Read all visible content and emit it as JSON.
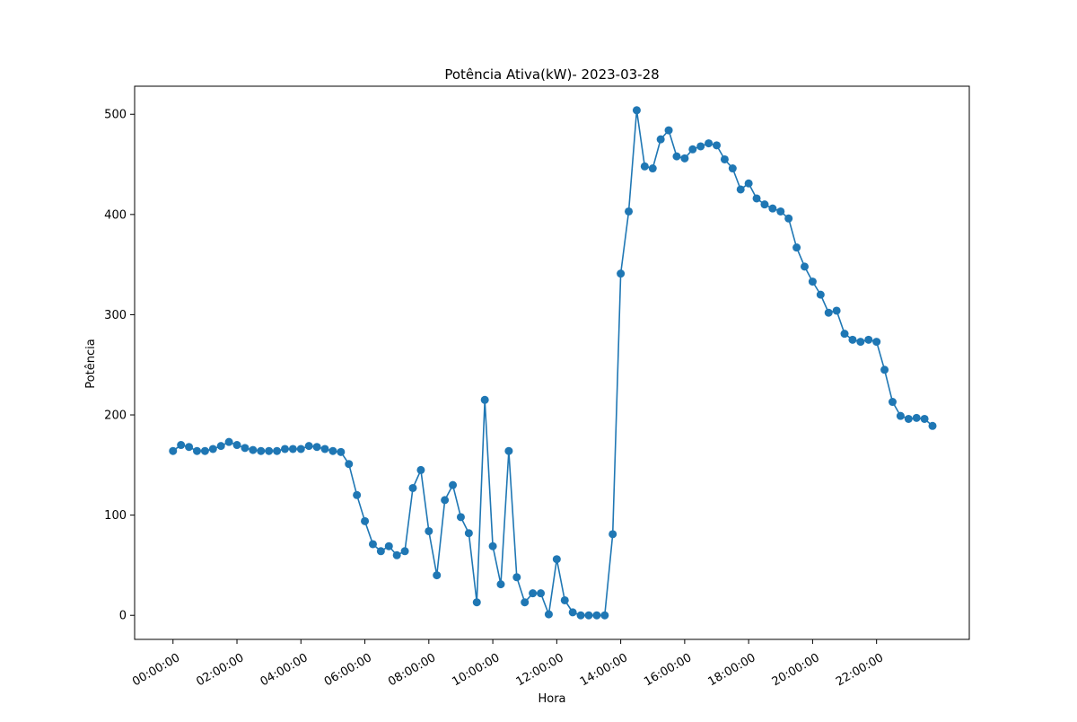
{
  "chart_data": {
    "type": "line",
    "title": "Potência Ativa(kW)- 2023-03-28",
    "xlabel": "Hora",
    "ylabel": "Potência",
    "xlim_hours": [
      -1.2,
      24.9
    ],
    "ylim": [
      -24,
      528
    ],
    "x_ticks": [
      "00:00:00",
      "02:00:00",
      "04:00:00",
      "06:00:00",
      "08:00:00",
      "10:00:00",
      "12:00:00",
      "14:00:00",
      "16:00:00",
      "18:00:00",
      "20:00:00",
      "22:00:00"
    ],
    "y_ticks": [
      0,
      100,
      200,
      300,
      400,
      500
    ],
    "grid": false,
    "marker": "circle",
    "color": "#1f77b4",
    "series": [
      {
        "x": [
          "00:00:00",
          "00:15:00",
          "00:30:00",
          "00:45:00",
          "01:00:00",
          "01:15:00",
          "01:30:00",
          "01:45:00",
          "02:00:00",
          "02:15:00",
          "02:30:00",
          "02:45:00",
          "03:00:00",
          "03:15:00",
          "03:30:00",
          "03:45:00",
          "04:00:00",
          "04:15:00",
          "04:30:00",
          "04:45:00",
          "05:00:00",
          "05:15:00",
          "05:30:00",
          "05:45:00",
          "06:00:00",
          "06:15:00",
          "06:30:00",
          "06:45:00",
          "07:00:00",
          "07:15:00",
          "07:30:00",
          "07:45:00",
          "08:00:00",
          "08:15:00",
          "08:30:00",
          "08:45:00",
          "09:00:00",
          "09:15:00",
          "09:30:00",
          "09:45:00",
          "10:00:00",
          "10:15:00",
          "10:30:00",
          "10:45:00",
          "11:00:00",
          "11:15:00",
          "11:30:00",
          "11:45:00",
          "12:00:00",
          "12:15:00",
          "12:30:00",
          "12:45:00",
          "13:00:00",
          "13:15:00",
          "13:30:00",
          "13:45:00",
          "14:00:00",
          "14:15:00",
          "14:30:00",
          "14:45:00",
          "15:00:00",
          "15:15:00",
          "15:30:00",
          "15:45:00",
          "16:00:00",
          "16:15:00",
          "16:30:00",
          "16:45:00",
          "17:00:00",
          "17:15:00",
          "17:30:00",
          "17:45:00",
          "18:00:00",
          "18:15:00",
          "18:30:00",
          "18:45:00",
          "19:00:00",
          "19:15:00",
          "19:30:00",
          "19:45:00",
          "20:00:00",
          "20:15:00",
          "20:30:00",
          "20:45:00",
          "21:00:00",
          "21:15:00",
          "21:30:00",
          "21:45:00",
          "22:00:00",
          "22:15:00",
          "22:30:00",
          "22:45:00",
          "23:00:00",
          "23:15:00",
          "23:30:00",
          "23:45:00"
        ],
        "values": [
          164,
          170,
          168,
          164,
          164,
          166,
          169,
          173,
          170,
          167,
          165,
          164,
          164,
          164,
          166,
          166,
          166,
          169,
          168,
          166,
          164,
          163,
          151,
          120,
          94,
          71,
          64,
          69,
          60,
          64,
          127,
          145,
          84,
          40,
          115,
          130,
          98,
          82,
          13,
          215,
          69,
          31,
          164,
          38,
          13,
          22,
          22,
          1,
          56,
          15,
          3,
          0,
          0,
          0,
          0,
          81,
          341,
          403,
          504,
          448,
          446,
          475,
          484,
          458,
          456,
          465,
          468,
          471,
          469,
          455,
          446,
          425,
          431,
          416,
          410,
          406,
          403,
          396,
          367,
          348,
          333,
          320,
          302,
          304,
          281,
          275,
          273,
          275,
          273,
          245,
          213,
          199,
          196,
          197,
          196,
          189
        ]
      }
    ]
  }
}
